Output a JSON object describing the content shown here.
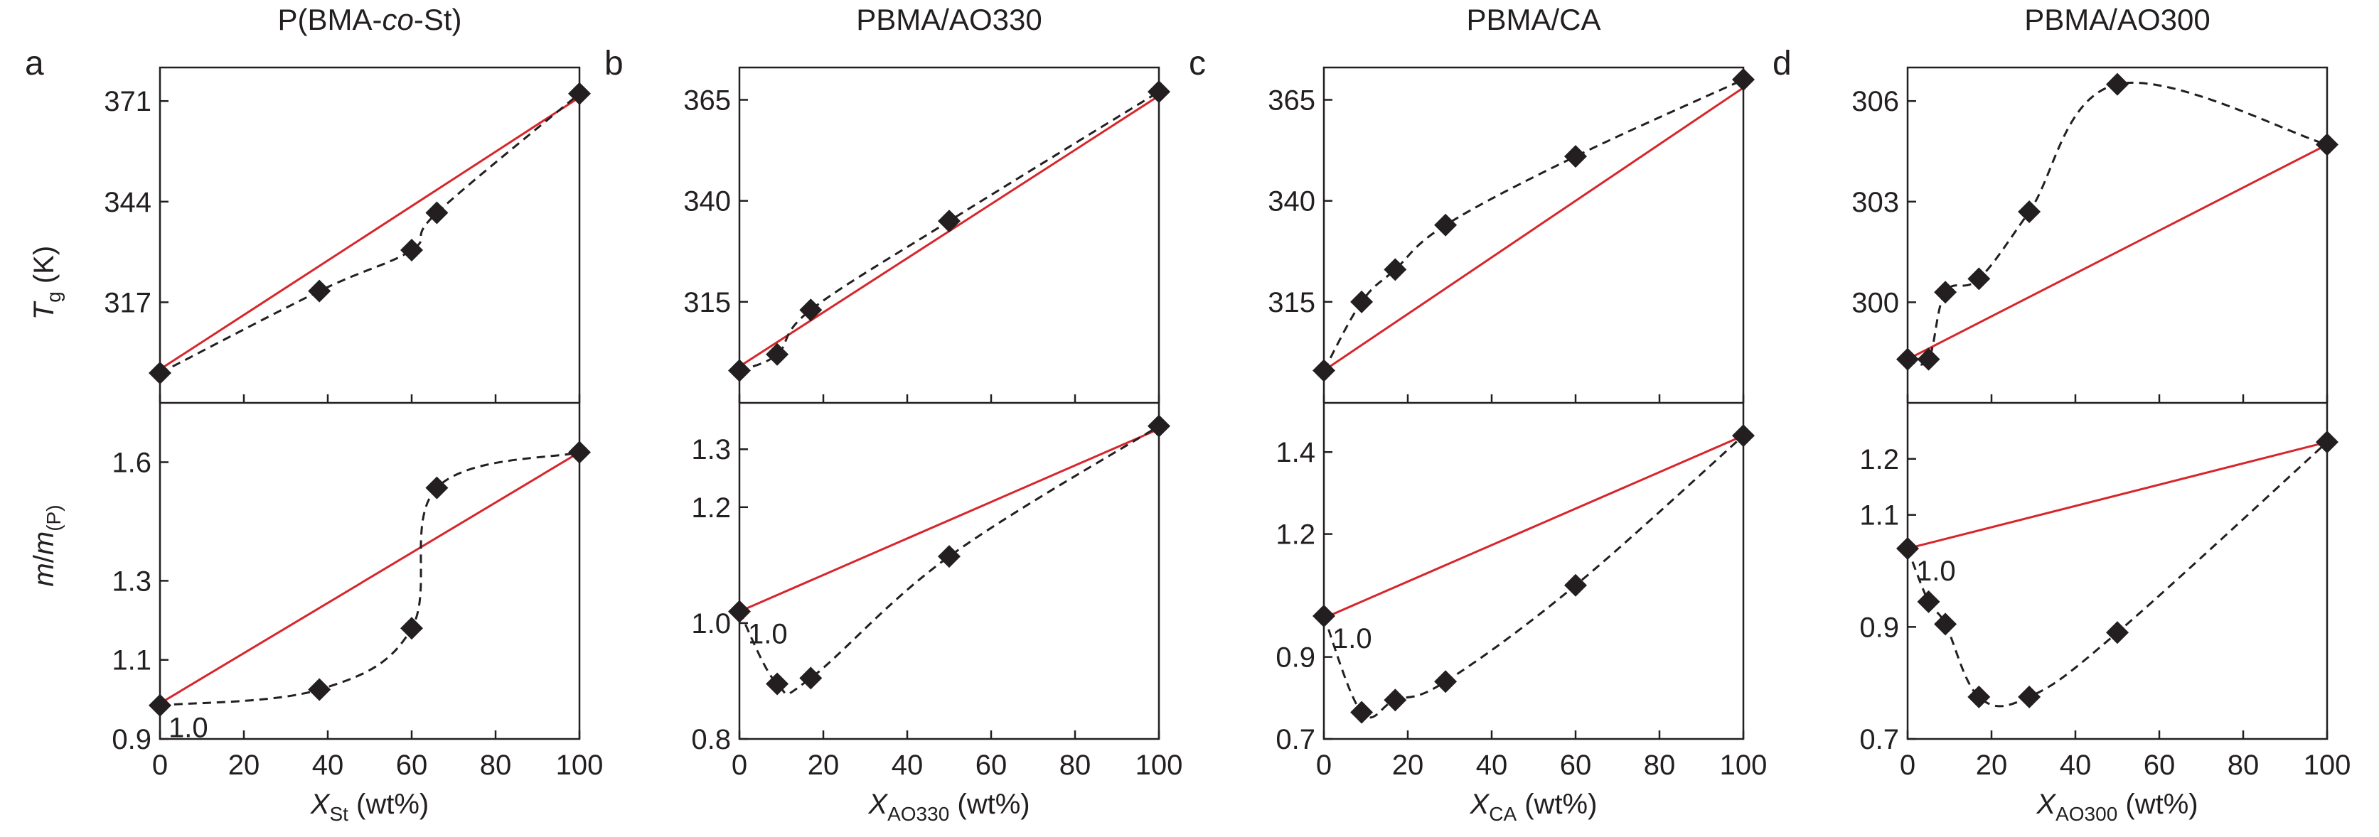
{
  "colors": {
    "linear_rule": "#d7262b",
    "markers": "#231f20",
    "axes": "#231f20",
    "fit_line": "#231f20"
  },
  "y_labels": {
    "top": {
      "main": "T",
      "sub": "g",
      "tail": " (K)"
    },
    "bottom": {
      "main": "m",
      "mid": "/",
      "main2": "m",
      "sub": "(P)"
    }
  },
  "chart_data": [
    {
      "id": "a",
      "letter": "a",
      "title": {
        "pre": "P(BMA-",
        "it": "co",
        "post": "-St)"
      },
      "xlabel": {
        "main": "X",
        "sub": "St",
        "tail": " (wt%)"
      },
      "xlim": [
        0,
        100
      ],
      "xticks": [
        "0",
        "20",
        "40",
        "60",
        "80",
        "100"
      ],
      "top": {
        "type": "scatter",
        "ylim": [
          290,
          380
        ],
        "yticks": [
          317,
          344,
          371
        ],
        "yticklabels": [
          "317",
          "344",
          "371"
        ],
        "x": [
          0,
          38,
          60,
          66,
          100
        ],
        "y": [
          298,
          320,
          331,
          341,
          373
        ],
        "linear": [
          [
            0,
            299
          ],
          [
            100,
            372
          ]
        ]
      },
      "bottom": {
        "type": "scatter",
        "ylim": [
          0.9,
          1.75
        ],
        "yticks": [
          0.9,
          1.1,
          1.3,
          1.6
        ],
        "yticklabels": [
          "0.9",
          "1.1",
          "1.3",
          "1.6"
        ],
        "x": [
          0,
          38,
          60,
          66,
          100
        ],
        "y": [
          0.985,
          1.025,
          1.18,
          1.535,
          1.625
        ],
        "linear": [
          [
            0,
            0.99
          ],
          [
            100,
            1.625
          ]
        ],
        "annotation": "1.0"
      }
    },
    {
      "id": "b",
      "letter": "b",
      "title": {
        "pre": "PBMA/AO330",
        "it": "",
        "post": ""
      },
      "xlabel": {
        "main": "X",
        "sub": "AO330",
        "tail": " (wt%)"
      },
      "xlim": [
        0,
        100
      ],
      "xticks": [
        "0",
        "20",
        "40",
        "60",
        "80",
        "100"
      ],
      "top": {
        "type": "scatter",
        "ylim": [
          290,
          373
        ],
        "yticks": [
          315,
          340,
          365
        ],
        "yticklabels": [
          "315",
          "340",
          "365"
        ],
        "x": [
          0,
          9,
          17,
          50,
          100
        ],
        "y": [
          298,
          302,
          313,
          335,
          367
        ],
        "linear": [
          [
            0,
            299
          ],
          [
            100,
            366
          ]
        ]
      },
      "bottom": {
        "type": "scatter",
        "ylim": [
          0.8,
          1.38
        ],
        "yticks": [
          0.8,
          1.0,
          1.2,
          1.3
        ],
        "yticklabels": [
          "0.8",
          "1.0",
          "1.2",
          "1.3"
        ],
        "x": [
          0,
          9,
          17,
          50,
          100
        ],
        "y": [
          1.02,
          0.895,
          0.905,
          1.115,
          1.34
        ],
        "linear": [
          [
            0,
            1.02
          ],
          [
            100,
            1.335
          ]
        ],
        "annotation": "1.0"
      }
    },
    {
      "id": "c",
      "letter": "c",
      "title": {
        "pre": "PBMA/CA",
        "it": "",
        "post": ""
      },
      "xlabel": {
        "main": "X",
        "sub": "CA",
        "tail": " (wt%)"
      },
      "xlim": [
        0,
        100
      ],
      "xticks": [
        "0",
        "20",
        "40",
        "60",
        "80",
        "100"
      ],
      "top": {
        "type": "scatter",
        "ylim": [
          290,
          373
        ],
        "yticks": [
          315,
          340,
          365
        ],
        "yticklabels": [
          "315",
          "340",
          "365"
        ],
        "x": [
          0,
          9,
          17,
          29,
          60,
          100
        ],
        "y": [
          298,
          315,
          323,
          334,
          351,
          370
        ],
        "linear": [
          [
            0,
            298
          ],
          [
            100,
            368
          ]
        ]
      },
      "bottom": {
        "type": "scatter",
        "ylim": [
          0.7,
          1.52
        ],
        "yticks": [
          0.7,
          0.9,
          1.2,
          1.4
        ],
        "yticklabels": [
          "0.7",
          "0.9",
          "1.2",
          "1.4"
        ],
        "x": [
          0,
          9,
          17,
          29,
          60,
          100
        ],
        "y": [
          1.0,
          0.765,
          0.795,
          0.84,
          1.075,
          1.44
        ],
        "linear": [
          [
            0,
            0.995
          ],
          [
            100,
            1.44
          ]
        ],
        "annotation": "1.0"
      }
    },
    {
      "id": "d",
      "letter": "d",
      "title": {
        "pre": "PBMA/AO300",
        "it": "",
        "post": ""
      },
      "xlabel": {
        "main": "X",
        "sub": "AO300",
        "tail": " (wt%)"
      },
      "xlim": [
        0,
        100
      ],
      "xticks": [
        "0",
        "20",
        "40",
        "60",
        "80",
        "100"
      ],
      "top": {
        "type": "scatter",
        "ylim": [
          297,
          307
        ],
        "yticks": [
          300,
          303,
          306
        ],
        "yticklabels": [
          "300",
          "303",
          "306"
        ],
        "x": [
          0,
          5,
          9,
          17,
          29,
          50,
          100
        ],
        "y": [
          298.3,
          298.3,
          300.3,
          300.7,
          302.7,
          306.5,
          304.7
        ],
        "linear": [
          [
            0,
            298.3
          ],
          [
            100,
            304.7
          ]
        ]
      },
      "bottom": {
        "type": "scatter",
        "ylim": [
          0.7,
          1.3
        ],
        "yticks": [
          0.7,
          0.9,
          1.1,
          1.2
        ],
        "yticklabels": [
          "0.7",
          "0.9",
          "1.1",
          "1.2"
        ],
        "x": [
          0,
          5,
          9,
          17,
          29,
          50,
          100
        ],
        "y": [
          1.04,
          0.945,
          0.905,
          0.775,
          0.775,
          0.89,
          1.23
        ],
        "linear": [
          [
            0,
            1.04
          ],
          [
            100,
            1.23
          ]
        ],
        "annotation": "1.0"
      }
    }
  ]
}
